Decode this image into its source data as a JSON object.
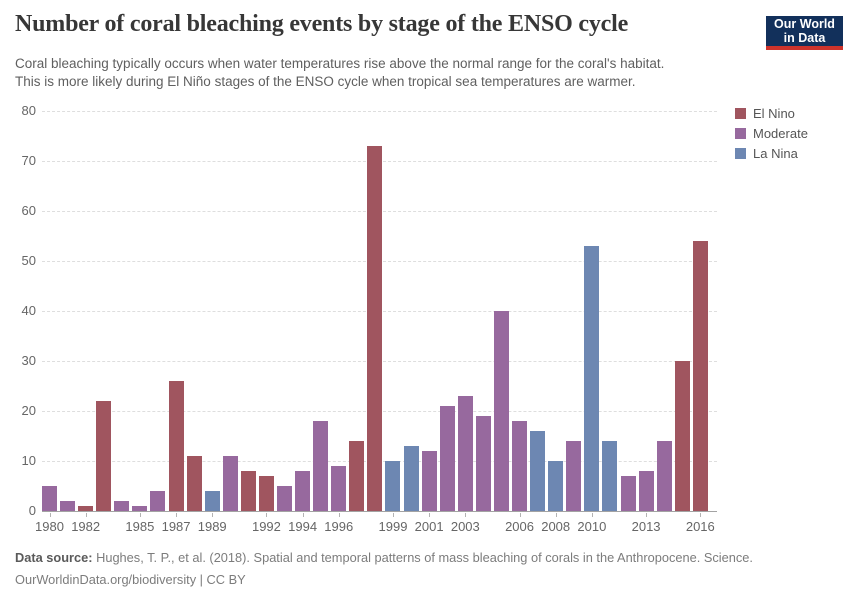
{
  "header": {
    "title": "Number of coral bleaching events by stage of the ENSO cycle",
    "subtitle_line1": "Coral bleaching typically occurs when water temperatures rise above the normal range for the coral's habitat.",
    "subtitle_line2": "This is more likely during El Niño stages of the ENSO cycle when tropical sea temperatures are warmer.",
    "logo": {
      "line1": "Our World",
      "line2": "in Data",
      "bg_color": "#12305B",
      "stripe_color": "#CE332B"
    }
  },
  "chart_data": {
    "type": "bar",
    "title": "Number of coral bleaching events by stage of the ENSO cycle",
    "xlabel": "",
    "ylabel": "",
    "ylim": [
      0,
      80
    ],
    "y_ticks": [
      0,
      10,
      20,
      30,
      40,
      50,
      60,
      70,
      80
    ],
    "grid": "horizontal-dashed",
    "legend_position": "right",
    "x_labeled_years": [
      1980,
      1982,
      1985,
      1987,
      1989,
      1992,
      1994,
      1996,
      1999,
      2001,
      2003,
      2006,
      2008,
      2010,
      2013,
      2016
    ],
    "groups": {
      "El Nino": "#A0555F",
      "Moderate": "#97699E",
      "La Nina": "#6D87B2"
    },
    "legend": [
      {
        "label": "El Nino",
        "color": "#A0555F"
      },
      {
        "label": "Moderate",
        "color": "#97699E"
      },
      {
        "label": "La Nina",
        "color": "#6D87B2"
      }
    ],
    "points": [
      {
        "year": 1980,
        "value": 5,
        "group": "Moderate"
      },
      {
        "year": 1981,
        "value": 2,
        "group": "Moderate"
      },
      {
        "year": 1982,
        "value": 1,
        "group": "El Nino"
      },
      {
        "year": 1983,
        "value": 22,
        "group": "El Nino"
      },
      {
        "year": 1984,
        "value": 2,
        "group": "Moderate"
      },
      {
        "year": 1985,
        "value": 1,
        "group": "Moderate"
      },
      {
        "year": 1986,
        "value": 4,
        "group": "Moderate"
      },
      {
        "year": 1987,
        "value": 26,
        "group": "El Nino"
      },
      {
        "year": 1988,
        "value": 11,
        "group": "El Nino"
      },
      {
        "year": 1989,
        "value": 4,
        "group": "La Nina"
      },
      {
        "year": 1990,
        "value": 11,
        "group": "Moderate"
      },
      {
        "year": 1991,
        "value": 8,
        "group": "El Nino"
      },
      {
        "year": 1992,
        "value": 7,
        "group": "El Nino"
      },
      {
        "year": 1993,
        "value": 5,
        "group": "Moderate"
      },
      {
        "year": 1994,
        "value": 8,
        "group": "Moderate"
      },
      {
        "year": 1995,
        "value": 18,
        "group": "Moderate"
      },
      {
        "year": 1996,
        "value": 9,
        "group": "Moderate"
      },
      {
        "year": 1997,
        "value": 14,
        "group": "El Nino"
      },
      {
        "year": 1998,
        "value": 73,
        "group": "El Nino"
      },
      {
        "year": 1999,
        "value": 10,
        "group": "La Nina"
      },
      {
        "year": 2000,
        "value": 13,
        "group": "La Nina"
      },
      {
        "year": 2001,
        "value": 12,
        "group": "Moderate"
      },
      {
        "year": 2002,
        "value": 21,
        "group": "Moderate"
      },
      {
        "year": 2003,
        "value": 23,
        "group": "Moderate"
      },
      {
        "year": 2004,
        "value": 19,
        "group": "Moderate"
      },
      {
        "year": 2005,
        "value": 40,
        "group": "Moderate"
      },
      {
        "year": 2006,
        "value": 18,
        "group": "Moderate"
      },
      {
        "year": 2007,
        "value": 16,
        "group": "La Nina"
      },
      {
        "year": 2008,
        "value": 10,
        "group": "La Nina"
      },
      {
        "year": 2009,
        "value": 14,
        "group": "Moderate"
      },
      {
        "year": 2010,
        "value": 53,
        "group": "La Nina"
      },
      {
        "year": 2011,
        "value": 14,
        "group": "La Nina"
      },
      {
        "year": 2012,
        "value": 7,
        "group": "Moderate"
      },
      {
        "year": 2013,
        "value": 8,
        "group": "Moderate"
      },
      {
        "year": 2014,
        "value": 14,
        "group": "Moderate"
      },
      {
        "year": 2015,
        "value": 30,
        "group": "El Nino"
      },
      {
        "year": 2016,
        "value": 54,
        "group": "El Nino"
      }
    ]
  },
  "footer": {
    "source_label": "Data source:",
    "source_text": " Hughes, T. P., et al. (2018). Spatial and temporal patterns of mass bleaching of corals in the Anthropocene. Science.",
    "attribution": "OurWorldinData.org/biodiversity | CC BY"
  }
}
